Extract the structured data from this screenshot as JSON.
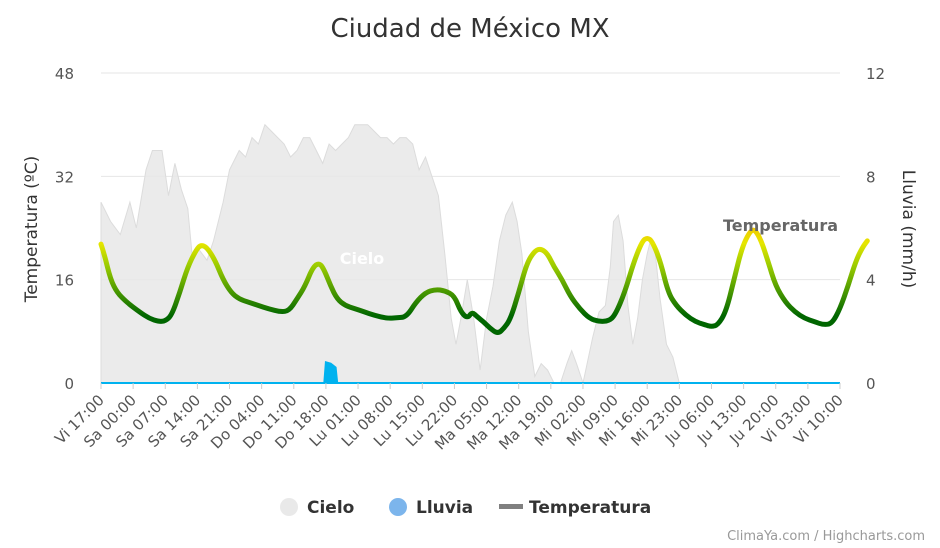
{
  "chart_data": {
    "type": "line",
    "title": "Ciudad de México MX",
    "ylabel": "Temperatura (ºC)",
    "y2label": "Lluvia (mm/h)",
    "ylim": [
      0,
      48
    ],
    "y2lim": [
      0,
      12
    ],
    "yticks": [
      "0",
      "16",
      "32",
      "48"
    ],
    "y2ticks": [
      "0",
      "4",
      "8",
      "12"
    ],
    "categories": [
      "Vi 17:00",
      "Sa 00:00",
      "Sa 07:00",
      "Sa 14:00",
      "Sa 21:00",
      "Do 04:00",
      "Do 11:00",
      "Do 18:00",
      "Lu 01:00",
      "Lu 08:00",
      "Lu 15:00",
      "Lu 22:00",
      "Ma 05:00",
      "Ma 12:00",
      "Ma 19:00",
      "Mi 02:00",
      "Mi 09:00",
      "Mi 16:00",
      "Mi 23:00",
      "Ju 06:00",
      "Ju 13:00",
      "Ju 20:00",
      "Vi 03:00",
      "Vi 10:00"
    ],
    "series": [
      {
        "name": "Cielo",
        "axis": "y",
        "color": "#e8e8e8",
        "data_label": "Cielo",
        "points": [
          [
            0,
            28
          ],
          [
            0.3,
            25
          ],
          [
            0.6,
            23
          ],
          [
            0.9,
            28
          ],
          [
            1.1,
            24
          ],
          [
            1.4,
            33
          ],
          [
            1.6,
            36
          ],
          [
            1.9,
            36
          ],
          [
            2.1,
            29
          ],
          [
            2.3,
            34
          ],
          [
            2.5,
            30
          ],
          [
            2.7,
            27
          ],
          [
            2.85,
            19
          ],
          [
            3,
            21
          ],
          [
            3.3,
            19
          ],
          [
            3.5,
            22
          ],
          [
            3.8,
            28
          ],
          [
            4,
            33
          ],
          [
            4.3,
            36
          ],
          [
            4.5,
            35
          ],
          [
            4.7,
            38
          ],
          [
            4.9,
            37
          ],
          [
            5.1,
            40
          ],
          [
            5.3,
            39
          ],
          [
            5.5,
            38
          ],
          [
            5.7,
            37
          ],
          [
            5.9,
            35
          ],
          [
            6.1,
            36
          ],
          [
            6.3,
            38
          ],
          [
            6.5,
            38
          ],
          [
            6.7,
            36
          ],
          [
            6.9,
            34
          ],
          [
            7.1,
            37
          ],
          [
            7.3,
            36
          ],
          [
            7.5,
            37
          ],
          [
            7.7,
            38
          ],
          [
            7.9,
            40
          ],
          [
            8.1,
            40
          ],
          [
            8.3,
            40
          ],
          [
            8.5,
            39
          ],
          [
            8.7,
            38
          ],
          [
            8.9,
            38
          ],
          [
            9.1,
            37
          ],
          [
            9.3,
            38
          ],
          [
            9.5,
            38
          ],
          [
            9.7,
            37
          ],
          [
            9.9,
            33
          ],
          [
            10.1,
            35
          ],
          [
            10.3,
            32
          ],
          [
            10.5,
            29
          ],
          [
            10.7,
            20
          ],
          [
            10.9,
            10
          ],
          [
            11.05,
            6
          ],
          [
            11.2,
            10
          ],
          [
            11.4,
            16
          ],
          [
            11.6,
            10
          ],
          [
            11.8,
            2
          ],
          [
            12,
            10
          ],
          [
            12.2,
            15
          ],
          [
            12.4,
            22
          ],
          [
            12.6,
            26
          ],
          [
            12.8,
            28
          ],
          [
            12.95,
            25
          ],
          [
            13.1,
            20
          ],
          [
            13.3,
            8
          ],
          [
            13.5,
            1
          ],
          [
            13.7,
            3
          ],
          [
            13.9,
            2
          ],
          [
            14.1,
            0
          ],
          [
            14.3,
            0
          ],
          [
            14.5,
            3
          ],
          [
            14.65,
            5
          ],
          [
            14.8,
            3
          ],
          [
            15,
            0
          ],
          [
            15.3,
            7
          ],
          [
            15.5,
            11
          ],
          [
            15.7,
            12
          ],
          [
            15.85,
            18
          ],
          [
            15.95,
            25
          ],
          [
            16.1,
            26
          ],
          [
            16.25,
            22
          ],
          [
            16.4,
            12
          ],
          [
            16.55,
            6
          ],
          [
            16.7,
            10
          ],
          [
            16.85,
            16
          ],
          [
            17.0,
            20
          ],
          [
            17.1,
            22
          ],
          [
            17.25,
            20
          ],
          [
            17.4,
            13
          ],
          [
            17.6,
            6
          ],
          [
            17.8,
            4
          ],
          [
            18,
            0
          ],
          [
            18.3,
            0
          ],
          [
            18.5,
            0
          ],
          [
            19,
            0
          ],
          [
            23,
            0
          ]
        ]
      },
      {
        "name": "Lluvia",
        "axis": "y2",
        "color": "#00b2ef",
        "points": [
          [
            0,
            0
          ],
          [
            6.95,
            0
          ],
          [
            7.0,
            0.8
          ],
          [
            7.15,
            0.75
          ],
          [
            7.3,
            0.6
          ],
          [
            7.35,
            0
          ],
          [
            23,
            0
          ]
        ]
      },
      {
        "name": "Temperatura",
        "axis": "y",
        "color": "#7cb342",
        "data_label": "Temperatura",
        "points": [
          [
            0,
            21.5
          ],
          [
            0.1,
            20
          ],
          [
            0.3,
            16
          ],
          [
            0.5,
            14
          ],
          [
            0.8,
            12.5
          ],
          [
            1.2,
            11
          ],
          [
            1.5,
            10
          ],
          [
            1.8,
            9.5
          ],
          [
            2.0,
            9.6
          ],
          [
            2.2,
            10.5
          ],
          [
            2.45,
            14
          ],
          [
            2.7,
            18
          ],
          [
            2.95,
            20.5
          ],
          [
            3.1,
            21.4
          ],
          [
            3.3,
            21
          ],
          [
            3.55,
            19
          ],
          [
            3.8,
            16
          ],
          [
            4.05,
            14
          ],
          [
            4.3,
            13
          ],
          [
            4.6,
            12.5
          ],
          [
            4.9,
            12
          ],
          [
            5.2,
            11.5
          ],
          [
            5.6,
            11
          ],
          [
            5.85,
            11.2
          ],
          [
            6.1,
            13
          ],
          [
            6.35,
            15
          ],
          [
            6.6,
            18
          ],
          [
            6.8,
            18.6
          ],
          [
            6.95,
            17.5
          ],
          [
            7.15,
            15
          ],
          [
            7.35,
            13
          ],
          [
            7.6,
            12
          ],
          [
            7.9,
            11.5
          ],
          [
            8.2,
            11
          ],
          [
            8.5,
            10.5
          ],
          [
            8.9,
            10
          ],
          [
            9.2,
            10.1
          ],
          [
            9.5,
            10.2
          ],
          [
            9.8,
            12.5
          ],
          [
            10.1,
            14
          ],
          [
            10.4,
            14.5
          ],
          [
            10.7,
            14.3
          ],
          [
            11.0,
            13.5
          ],
          [
            11.2,
            11
          ],
          [
            11.4,
            10
          ],
          [
            11.55,
            11
          ],
          [
            11.7,
            10.3
          ],
          [
            11.9,
            9.5
          ],
          [
            12.1,
            8.5
          ],
          [
            12.35,
            7.6
          ],
          [
            12.55,
            8.5
          ],
          [
            12.75,
            10
          ],
          [
            13.0,
            14
          ],
          [
            13.25,
            18.5
          ],
          [
            13.5,
            20.5
          ],
          [
            13.7,
            20.8
          ],
          [
            13.9,
            20
          ],
          [
            14.1,
            18
          ],
          [
            14.35,
            16
          ],
          [
            14.6,
            13.5
          ],
          [
            14.9,
            11.5
          ],
          [
            15.2,
            10
          ],
          [
            15.5,
            9.5
          ],
          [
            15.8,
            9.6
          ],
          [
            16.0,
            10.5
          ],
          [
            16.3,
            14
          ],
          [
            16.6,
            19
          ],
          [
            16.85,
            22
          ],
          [
            17.0,
            22.5
          ],
          [
            17.15,
            22
          ],
          [
            17.4,
            19
          ],
          [
            17.65,
            14
          ],
          [
            17.9,
            12
          ],
          [
            18.2,
            10.5
          ],
          [
            18.5,
            9.5
          ],
          [
            18.8,
            9
          ],
          [
            19.0,
            8.7
          ],
          [
            19.2,
            9
          ],
          [
            19.45,
            11
          ],
          [
            19.7,
            16
          ],
          [
            19.95,
            21
          ],
          [
            20.2,
            23.5
          ],
          [
            20.35,
            23.8
          ],
          [
            20.55,
            22
          ],
          [
            20.75,
            19
          ],
          [
            21.0,
            15
          ],
          [
            21.3,
            12.5
          ],
          [
            21.6,
            11
          ],
          [
            21.9,
            10
          ],
          [
            22.2,
            9.5
          ],
          [
            22.5,
            9
          ],
          [
            22.75,
            9.2
          ],
          [
            23.0,
            11.5
          ],
          [
            23.25,
            15
          ],
          [
            23.5,
            19
          ],
          [
            23.7,
            21
          ],
          [
            23.85,
            22
          ]
        ]
      }
    ],
    "legend": {
      "placement": "bottom-center",
      "items": [
        {
          "label": "Cielo",
          "color": "#e9e9e9",
          "shape": "circle"
        },
        {
          "label": "Lluvia",
          "color": "#7cb5ec",
          "shape": "circle"
        },
        {
          "label": "Temperatura",
          "color": "#808080",
          "shape": "line"
        }
      ]
    },
    "credits": "ClimaYa.com / Highcharts.com",
    "grid": true
  }
}
